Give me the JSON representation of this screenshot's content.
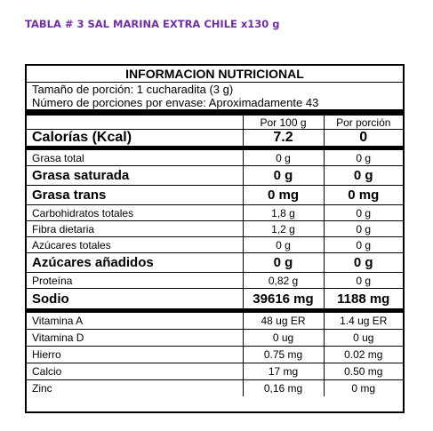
{
  "document_title": "TABLA # 3  SAL MARINA EXTRA CHILE x130 g",
  "panel": {
    "title": "INFORMACION NUTRICIONAL",
    "serving_size": "Tamaño de porción: 1 cucharadita (3 g)",
    "servings_per_container": "Número de porciones por envase:  Aproximadamente 43",
    "col_100g": "Por 100 g",
    "col_portion": "Por porción",
    "calories": {
      "label": "Calorías (Kcal)",
      "per100": "7.2",
      "perPortion": "0"
    },
    "rows": [
      {
        "label": "Grasa total",
        "per100": "0 g",
        "perPortion": "0 g"
      },
      {
        "label": "Grasa saturada",
        "per100": "0 g",
        "perPortion": "0 g"
      },
      {
        "label": "Grasa trans",
        "per100": "0 mg",
        "perPortion": "0 mg"
      },
      {
        "label": "Carbohidratos totales",
        "per100": "1,8 g",
        "perPortion": "0 g"
      },
      {
        "label": "Fibra dietaria",
        "per100": "1,2 g",
        "perPortion": "0 g"
      },
      {
        "label": "Azúcares totales",
        "per100": "0 g",
        "perPortion": "0 g"
      },
      {
        "label": "Azúcares añadidos",
        "per100": "0 g",
        "perPortion": "0 g"
      },
      {
        "label": "Proteína",
        "per100": "0,82 g",
        "perPortion": "0 g"
      },
      {
        "label": "Sodio",
        "per100": "39616 mg",
        "perPortion": "1188 mg"
      }
    ],
    "vitamins": [
      {
        "label": "Vitamina A",
        "per100": "48 ug ER",
        "perPortion": "1.4 ug ER"
      },
      {
        "label": "Vitamina D",
        "per100": "0 ug",
        "perPortion": "0 ug"
      },
      {
        "label": "Hierro",
        "per100": "0.75 mg",
        "perPortion": "0.02 mg"
      },
      {
        "label": "Calcio",
        "per100": "17 mg",
        "perPortion": "0.50 mg"
      },
      {
        "label": "Zinc",
        "per100": "0,16 mg",
        "perPortion": "0 mg"
      }
    ]
  }
}
